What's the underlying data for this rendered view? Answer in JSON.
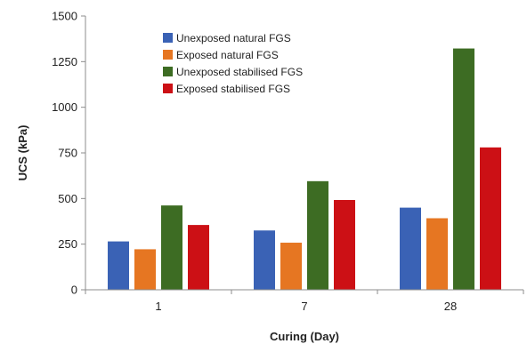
{
  "chart_data": {
    "type": "bar",
    "categories": [
      "1",
      "7",
      "28"
    ],
    "series": [
      {
        "name": "Unexposed natural FGS",
        "values": [
          265,
          325,
          450
        ],
        "color": "#3a62b5"
      },
      {
        "name": "Exposed natural FGS",
        "values": [
          222,
          258,
          392
        ],
        "color": "#e67622"
      },
      {
        "name": "Unexposed stabilised FGS",
        "values": [
          462,
          595,
          1322
        ],
        "color": "#3d6c23"
      },
      {
        "name": "Exposed stabilised FGS",
        "values": [
          355,
          492,
          780
        ],
        "color": "#cc1015"
      }
    ],
    "xlabel": "Curing (Day)",
    "ylabel": "UCS (kPa)",
    "ylim": [
      0,
      1500
    ],
    "yticks": [
      0,
      250,
      500,
      750,
      1000,
      1250,
      1500
    ],
    "grid": false,
    "legend_position": "top-left"
  }
}
